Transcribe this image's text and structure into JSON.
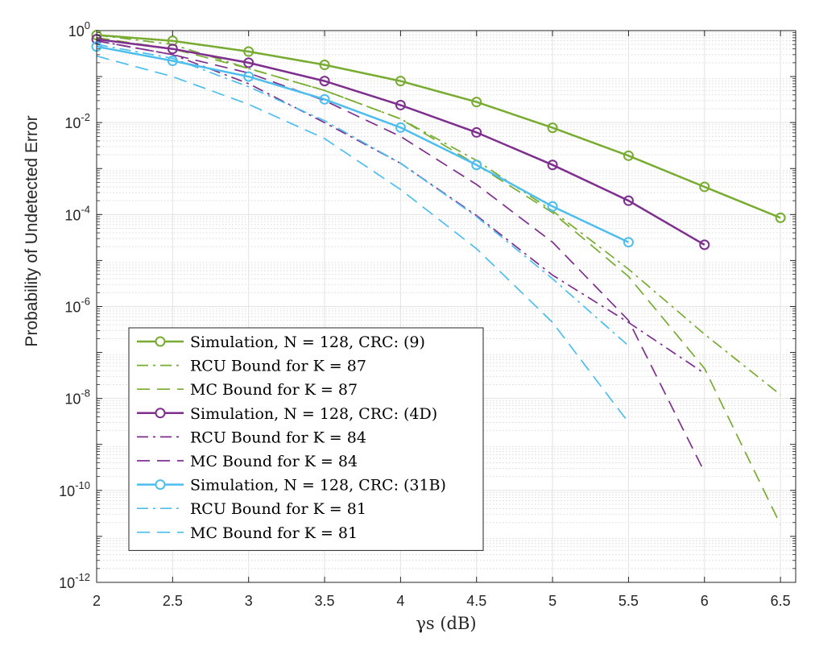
{
  "chart_data": {
    "type": "line",
    "title": "",
    "xlabel": "γs (dB)",
    "ylabel": "Probability of Undetected Error",
    "xlim": [
      2,
      6.6
    ],
    "ylim_log10": [
      -12,
      0
    ],
    "yscale": "log",
    "grid": true,
    "minor_grid": true,
    "legend_position": "lower-left",
    "x_ticks": [
      "2",
      "2.5",
      "3",
      "3.5",
      "4",
      "4.5",
      "5",
      "5.5",
      "6",
      "6.5"
    ],
    "x_tick_values": [
      2,
      2.5,
      3,
      3.5,
      4,
      4.5,
      5,
      5.5,
      6,
      6.5
    ],
    "y_ticks": [
      {
        "exp": 0,
        "base": "10",
        "sup": "0"
      },
      {
        "exp": -2,
        "base": "10",
        "sup": "-2"
      },
      {
        "exp": -4,
        "base": "10",
        "sup": "-4"
      },
      {
        "exp": -6,
        "base": "10",
        "sup": "-6"
      },
      {
        "exp": -8,
        "base": "10",
        "sup": "-8"
      },
      {
        "exp": -10,
        "base": "10",
        "sup": "-10"
      },
      {
        "exp": -12,
        "base": "10",
        "sup": "-12"
      }
    ],
    "series": [
      {
        "name": "Simulation, N = 128, CRC: (9)",
        "color": "#77AC30",
        "style": "solid",
        "marker": "circle",
        "x": [
          2,
          2.5,
          3,
          3.5,
          4,
          4.5,
          5,
          5.5,
          6,
          6.5
        ],
        "y": [
          0.8,
          0.6,
          0.35,
          0.18,
          0.08,
          0.028,
          0.0077,
          0.0019,
          0.0004,
          8.5e-05
        ]
      },
      {
        "name": "RCU Bound for K = 87",
        "color": "#77AC30",
        "style": "dashdot",
        "marker": "none",
        "x": [
          2,
          2.5,
          3,
          3.5,
          4,
          4.5,
          5,
          5.5,
          6,
          6.5
        ],
        "y": [
          0.8,
          0.5,
          0.15,
          0.05,
          0.012,
          0.0015,
          0.00012,
          6.5e-06,
          2.5e-07,
          1.2e-08
        ]
      },
      {
        "name": "MC Bound for K = 87",
        "color": "#77AC30",
        "style": "dashed",
        "marker": "none",
        "x": [
          2,
          2.5,
          3,
          3.5,
          4,
          4.5,
          5,
          5.5,
          6,
          6.5
        ],
        "y": [
          0.7,
          0.4,
          0.15,
          0.05,
          0.012,
          0.0012,
          0.00011,
          4.5e-06,
          4.5e-08,
          1.8e-11
        ]
      },
      {
        "name": "Simulation, N = 128, CRC: (4D)",
        "color": "#7E2F8E",
        "style": "solid",
        "marker": "circle",
        "x": [
          2,
          2.5,
          3,
          3.5,
          4,
          4.5,
          5,
          5.5,
          6
        ],
        "y": [
          0.65,
          0.4,
          0.2,
          0.08,
          0.024,
          0.0061,
          0.0012,
          0.0002,
          2.2e-05
        ]
      },
      {
        "name": "RCU Bound for K = 84",
        "color": "#7E2F8E",
        "style": "dashdot",
        "marker": "none",
        "x": [
          2,
          2.5,
          3,
          3.5,
          4,
          4.5,
          5,
          5.5,
          6
        ],
        "y": [
          0.6,
          0.3,
          0.07,
          0.01,
          0.0013,
          9.5e-05,
          4.8e-06,
          4.5e-07,
          3.5e-08
        ]
      },
      {
        "name": "MC Bound for K = 84",
        "color": "#7E2F8E",
        "style": "dashed",
        "marker": "none",
        "x": [
          2,
          2.5,
          3,
          3.5,
          4,
          4.5,
          5,
          5.5,
          6
        ],
        "y": [
          0.6,
          0.3,
          0.12,
          0.03,
          0.005,
          0.00045,
          2.5e-05,
          5e-07,
          2.5e-10
        ]
      },
      {
        "name": "Simulation, N = 128, CRC: (31B)",
        "color": "#4DBEEE",
        "style": "solid",
        "marker": "circle",
        "x": [
          2,
          2.5,
          3,
          3.5,
          4,
          4.5,
          5,
          5.5
        ],
        "y": [
          0.45,
          0.22,
          0.1,
          0.032,
          0.0078,
          0.0012,
          0.00015,
          2.5e-05
        ]
      },
      {
        "name": "RCU Bound for K = 81",
        "color": "#4DBEEE",
        "style": "dashdot",
        "marker": "none",
        "x": [
          2,
          2.5,
          3,
          3.5,
          4,
          4.5,
          5,
          5.5
        ],
        "y": [
          0.5,
          0.25,
          0.06,
          0.011,
          0.0013,
          9e-05,
          4e-06,
          1.4e-07
        ]
      },
      {
        "name": "MC Bound for K = 81",
        "color": "#4DBEEE",
        "style": "dashed",
        "marker": "none",
        "x": [
          2,
          2.5,
          3,
          3.5,
          4,
          4.5,
          5,
          5.5
        ],
        "y": [
          0.28,
          0.1,
          0.025,
          0.0045,
          0.00035,
          1.8e-05,
          4.5e-07,
          3e-09
        ]
      }
    ]
  }
}
